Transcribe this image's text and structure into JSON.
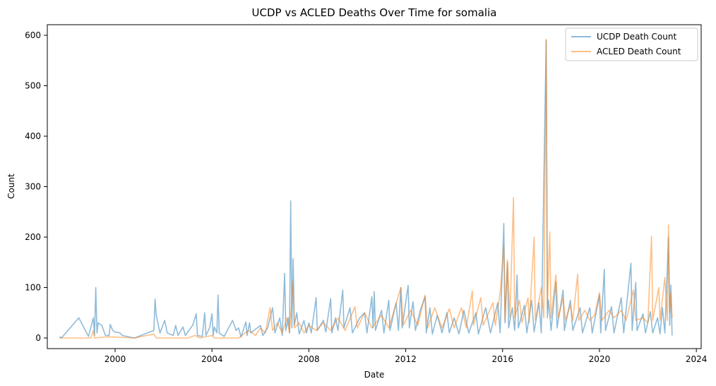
{
  "chart_data": {
    "type": "line",
    "title": "UCDP vs ACLED Deaths Over Time for somalia",
    "xlabel": "Date",
    "ylabel": "Count",
    "xlim": [
      1997.2,
      2024.2
    ],
    "ylim": [
      -21,
      621
    ],
    "x_ticks": [
      2000,
      2004,
      2008,
      2012,
      2016,
      2020,
      2024
    ],
    "y_ticks": [
      0,
      100,
      200,
      300,
      400,
      500,
      600
    ],
    "grid": false,
    "legend_position": "top-right",
    "series": [
      {
        "name": "UCDP Death Count",
        "color": "#1f77b4",
        "points": [
          [
            1997.7,
            2
          ],
          [
            1997.8,
            1
          ],
          [
            1998.5,
            40
          ],
          [
            1998.9,
            3
          ],
          [
            1999.1,
            40
          ],
          [
            1999.15,
            5
          ],
          [
            1999.2,
            100
          ],
          [
            1999.25,
            10
          ],
          [
            1999.3,
            30
          ],
          [
            1999.45,
            25
          ],
          [
            1999.6,
            5
          ],
          [
            1999.75,
            5
          ],
          [
            1999.8,
            27
          ],
          [
            1999.9,
            15
          ],
          [
            2000.0,
            12
          ],
          [
            2000.2,
            10
          ],
          [
            2000.3,
            5
          ],
          [
            2000.6,
            2
          ],
          [
            2000.8,
            0
          ],
          [
            2001.6,
            15
          ],
          [
            2001.65,
            77
          ],
          [
            2001.7,
            45
          ],
          [
            2001.85,
            10
          ],
          [
            2002.05,
            35
          ],
          [
            2002.15,
            10
          ],
          [
            2002.4,
            5
          ],
          [
            2002.5,
            25
          ],
          [
            2002.6,
            5
          ],
          [
            2002.8,
            22
          ],
          [
            2002.9,
            5
          ],
          [
            2003.0,
            12
          ],
          [
            2003.2,
            25
          ],
          [
            2003.35,
            48
          ],
          [
            2003.4,
            5
          ],
          [
            2003.6,
            3
          ],
          [
            2003.7,
            50
          ],
          [
            2003.75,
            5
          ],
          [
            2003.9,
            20
          ],
          [
            2004.0,
            48
          ],
          [
            2004.05,
            5
          ],
          [
            2004.1,
            22
          ],
          [
            2004.2,
            10
          ],
          [
            2004.25,
            85
          ],
          [
            2004.3,
            10
          ],
          [
            2004.5,
            3
          ],
          [
            2004.85,
            35
          ],
          [
            2005.0,
            15
          ],
          [
            2005.1,
            20
          ],
          [
            2005.2,
            2
          ],
          [
            2005.4,
            32
          ],
          [
            2005.45,
            5
          ],
          [
            2005.55,
            30
          ],
          [
            2005.6,
            10
          ],
          [
            2006.0,
            25
          ],
          [
            2006.1,
            5
          ],
          [
            2006.3,
            20
          ],
          [
            2006.5,
            60
          ],
          [
            2006.6,
            10
          ],
          [
            2006.8,
            40
          ],
          [
            2006.9,
            5
          ],
          [
            2007.0,
            128
          ],
          [
            2007.05,
            15
          ],
          [
            2007.15,
            40
          ],
          [
            2007.2,
            10
          ],
          [
            2007.25,
            272
          ],
          [
            2007.3,
            20
          ],
          [
            2007.35,
            157
          ],
          [
            2007.4,
            25
          ],
          [
            2007.5,
            50
          ],
          [
            2007.6,
            8
          ],
          [
            2007.8,
            35
          ],
          [
            2007.9,
            10
          ],
          [
            2008.0,
            30
          ],
          [
            2008.1,
            10
          ],
          [
            2008.3,
            80
          ],
          [
            2008.35,
            15
          ],
          [
            2008.6,
            35
          ],
          [
            2008.7,
            12
          ],
          [
            2008.9,
            78
          ],
          [
            2008.95,
            10
          ],
          [
            2009.1,
            40
          ],
          [
            2009.2,
            15
          ],
          [
            2009.4,
            95
          ],
          [
            2009.45,
            20
          ],
          [
            2009.7,
            60
          ],
          [
            2009.8,
            10
          ],
          [
            2010.1,
            40
          ],
          [
            2010.3,
            50
          ],
          [
            2010.4,
            10
          ],
          [
            2010.6,
            82
          ],
          [
            2010.65,
            20
          ],
          [
            2010.7,
            92
          ],
          [
            2010.75,
            15
          ],
          [
            2011.0,
            55
          ],
          [
            2011.1,
            10
          ],
          [
            2011.3,
            75
          ],
          [
            2011.35,
            15
          ],
          [
            2011.6,
            70
          ],
          [
            2011.7,
            15
          ],
          [
            2011.8,
            100
          ],
          [
            2011.85,
            20
          ],
          [
            2012.1,
            104
          ],
          [
            2012.15,
            20
          ],
          [
            2012.3,
            72
          ],
          [
            2012.4,
            15
          ],
          [
            2012.6,
            55
          ],
          [
            2012.8,
            82
          ],
          [
            2012.85,
            10
          ],
          [
            2013.0,
            60
          ],
          [
            2013.1,
            8
          ],
          [
            2013.3,
            45
          ],
          [
            2013.5,
            10
          ],
          [
            2013.7,
            50
          ],
          [
            2013.8,
            10
          ],
          [
            2014.0,
            40
          ],
          [
            2014.2,
            8
          ],
          [
            2014.4,
            55
          ],
          [
            2014.6,
            10
          ],
          [
            2014.9,
            50
          ],
          [
            2015.0,
            8
          ],
          [
            2015.3,
            60
          ],
          [
            2015.5,
            10
          ],
          [
            2015.8,
            70
          ],
          [
            2015.9,
            10
          ],
          [
            2016.05,
            227
          ],
          [
            2016.1,
            30
          ],
          [
            2016.2,
            150
          ],
          [
            2016.25,
            20
          ],
          [
            2016.4,
            60
          ],
          [
            2016.5,
            15
          ],
          [
            2016.6,
            125
          ],
          [
            2016.65,
            20
          ],
          [
            2016.9,
            65
          ],
          [
            2017.0,
            10
          ],
          [
            2017.2,
            75
          ],
          [
            2017.3,
            12
          ],
          [
            2017.5,
            70
          ],
          [
            2017.6,
            10
          ],
          [
            2017.8,
            590
          ],
          [
            2017.85,
            40
          ],
          [
            2017.9,
            75
          ],
          [
            2018.0,
            15
          ],
          [
            2018.2,
            112
          ],
          [
            2018.25,
            20
          ],
          [
            2018.5,
            95
          ],
          [
            2018.55,
            15
          ],
          [
            2018.8,
            75
          ],
          [
            2018.9,
            15
          ],
          [
            2019.2,
            60
          ],
          [
            2019.3,
            10
          ],
          [
            2019.6,
            60
          ],
          [
            2019.7,
            10
          ],
          [
            2020.0,
            85
          ],
          [
            2020.05,
            10
          ],
          [
            2020.2,
            136
          ],
          [
            2020.25,
            15
          ],
          [
            2020.5,
            62
          ],
          [
            2020.6,
            10
          ],
          [
            2020.9,
            80
          ],
          [
            2021.0,
            10
          ],
          [
            2021.3,
            148
          ],
          [
            2021.35,
            15
          ],
          [
            2021.5,
            110
          ],
          [
            2021.55,
            15
          ],
          [
            2021.8,
            48
          ],
          [
            2021.9,
            10
          ],
          [
            2022.1,
            52
          ],
          [
            2022.2,
            10
          ],
          [
            2022.4,
            40
          ],
          [
            2022.5,
            8
          ],
          [
            2022.6,
            60
          ],
          [
            2022.7,
            10
          ],
          [
            2022.85,
            200
          ],
          [
            2022.9,
            25
          ],
          [
            2022.95,
            105
          ],
          [
            2023.0,
            5
          ]
        ]
      },
      {
        "name": "ACLED Death Count",
        "color": "#ff7f0e",
        "points": [
          [
            1997.7,
            0
          ],
          [
            1999.0,
            0
          ],
          [
            1999.1,
            15
          ],
          [
            1999.15,
            0
          ],
          [
            1999.6,
            2
          ],
          [
            2000.0,
            2
          ],
          [
            2000.8,
            0
          ],
          [
            2001.6,
            8
          ],
          [
            2001.7,
            0
          ],
          [
            2003.0,
            0
          ],
          [
            2003.3,
            5
          ],
          [
            2003.5,
            0
          ],
          [
            2004.0,
            5
          ],
          [
            2004.1,
            0
          ],
          [
            2005.1,
            0
          ],
          [
            2005.5,
            15
          ],
          [
            2005.8,
            5
          ],
          [
            2006.0,
            20
          ],
          [
            2006.2,
            10
          ],
          [
            2006.4,
            60
          ],
          [
            2006.5,
            15
          ],
          [
            2006.7,
            30
          ],
          [
            2006.9,
            10
          ],
          [
            2007.1,
            40
          ],
          [
            2007.2,
            10
          ],
          [
            2007.35,
            112
          ],
          [
            2007.4,
            20
          ],
          [
            2007.6,
            30
          ],
          [
            2007.8,
            10
          ],
          [
            2008.0,
            25
          ],
          [
            2008.3,
            15
          ],
          [
            2008.6,
            30
          ],
          [
            2008.9,
            15
          ],
          [
            2009.2,
            40
          ],
          [
            2009.5,
            15
          ],
          [
            2009.9,
            62
          ],
          [
            2010.0,
            20
          ],
          [
            2010.3,
            50
          ],
          [
            2010.6,
            20
          ],
          [
            2011.0,
            45
          ],
          [
            2011.3,
            20
          ],
          [
            2011.8,
            100
          ],
          [
            2011.9,
            25
          ],
          [
            2012.2,
            55
          ],
          [
            2012.5,
            25
          ],
          [
            2012.8,
            85
          ],
          [
            2012.9,
            20
          ],
          [
            2013.2,
            60
          ],
          [
            2013.5,
            20
          ],
          [
            2013.8,
            58
          ],
          [
            2014.0,
            20
          ],
          [
            2014.3,
            60
          ],
          [
            2014.5,
            20
          ],
          [
            2014.75,
            93
          ],
          [
            2014.8,
            25
          ],
          [
            2015.1,
            80
          ],
          [
            2015.2,
            25
          ],
          [
            2015.6,
            70
          ],
          [
            2015.7,
            25
          ],
          [
            2015.9,
            90
          ],
          [
            2016.05,
            182
          ],
          [
            2016.1,
            35
          ],
          [
            2016.2,
            155
          ],
          [
            2016.3,
            40
          ],
          [
            2016.45,
            278
          ],
          [
            2016.5,
            40
          ],
          [
            2016.7,
            75
          ],
          [
            2016.8,
            30
          ],
          [
            2017.05,
            80
          ],
          [
            2017.1,
            30
          ],
          [
            2017.3,
            200
          ],
          [
            2017.35,
            35
          ],
          [
            2017.6,
            100
          ],
          [
            2017.7,
            40
          ],
          [
            2017.8,
            592
          ],
          [
            2017.85,
            60
          ],
          [
            2017.95,
            210
          ],
          [
            2018.0,
            40
          ],
          [
            2018.2,
            125
          ],
          [
            2018.3,
            40
          ],
          [
            2018.5,
            80
          ],
          [
            2018.6,
            35
          ],
          [
            2018.8,
            65
          ],
          [
            2018.9,
            35
          ],
          [
            2019.1,
            127
          ],
          [
            2019.15,
            35
          ],
          [
            2019.4,
            55
          ],
          [
            2019.6,
            35
          ],
          [
            2019.8,
            45
          ],
          [
            2020.0,
            90
          ],
          [
            2020.1,
            35
          ],
          [
            2020.4,
            55
          ],
          [
            2020.6,
            40
          ],
          [
            2020.9,
            55
          ],
          [
            2021.1,
            35
          ],
          [
            2021.4,
            95
          ],
          [
            2021.5,
            35
          ],
          [
            2021.8,
            40
          ],
          [
            2022.0,
            30
          ],
          [
            2022.15,
            202
          ],
          [
            2022.2,
            35
          ],
          [
            2022.45,
            100
          ],
          [
            2022.5,
            35
          ],
          [
            2022.7,
            120
          ],
          [
            2022.8,
            35
          ],
          [
            2022.85,
            224
          ],
          [
            2022.9,
            50
          ],
          [
            2022.95,
            90
          ],
          [
            2023.0,
            40
          ]
        ]
      }
    ]
  }
}
